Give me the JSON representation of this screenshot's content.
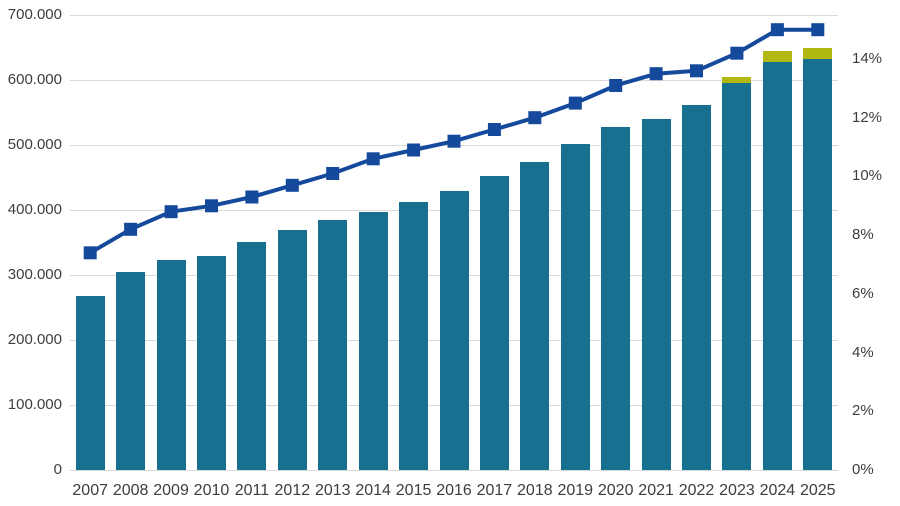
{
  "chart_data": {
    "type": "bar",
    "subtype": "stacked-bars-with-line-combo",
    "title": "",
    "xlabel": "",
    "ylabel": "",
    "legend": "none",
    "grid": "horizontal",
    "background_color": "#ffffff",
    "gridline_color": "#d9d9d9",
    "text_color": "#3d3d3d",
    "categories": [
      "2007",
      "2008",
      "2009",
      "2010",
      "2011",
      "2012",
      "2013",
      "2014",
      "2015",
      "2016",
      "2017",
      "2018",
      "2019",
      "2020",
      "2021",
      "2022",
      "2023",
      "2024",
      "2025"
    ],
    "bars_primary": {
      "color": "#17708F",
      "axis": "left",
      "values": [
        267000,
        305000,
        323000,
        330000,
        351000,
        370000,
        384000,
        397000,
        412000,
        429000,
        452000,
        474000,
        502000,
        527000,
        540000,
        561000,
        595000,
        628000,
        632000
      ]
    },
    "bars_top_segment": {
      "color": "#B2B812",
      "axis": "left",
      "values": [
        0,
        0,
        0,
        0,
        0,
        0,
        0,
        0,
        0,
        0,
        0,
        0,
        0,
        0,
        0,
        0,
        10000,
        17000,
        17000
      ]
    },
    "line": {
      "color": "#14499C",
      "axis": "right",
      "marker": "square",
      "values_percent": [
        7.4,
        8.2,
        8.8,
        9.0,
        9.3,
        9.7,
        10.1,
        10.6,
        10.9,
        11.2,
        11.6,
        12.0,
        12.5,
        13.1,
        13.5,
        13.6,
        14.2,
        15.0,
        15.0
      ]
    },
    "left_axis": {
      "min": 0,
      "max": 700000,
      "step": 100000,
      "tick_labels": [
        "0",
        "100.000",
        "200.000",
        "300.000",
        "400.000",
        "500.000",
        "600.000",
        "700.000"
      ]
    },
    "right_axis": {
      "min": 0,
      "max": 15.5,
      "step": 2,
      "tick_labels": [
        "0%",
        "2%",
        "4%",
        "6%",
        "8%",
        "10%",
        "12%",
        "14%"
      ]
    }
  }
}
